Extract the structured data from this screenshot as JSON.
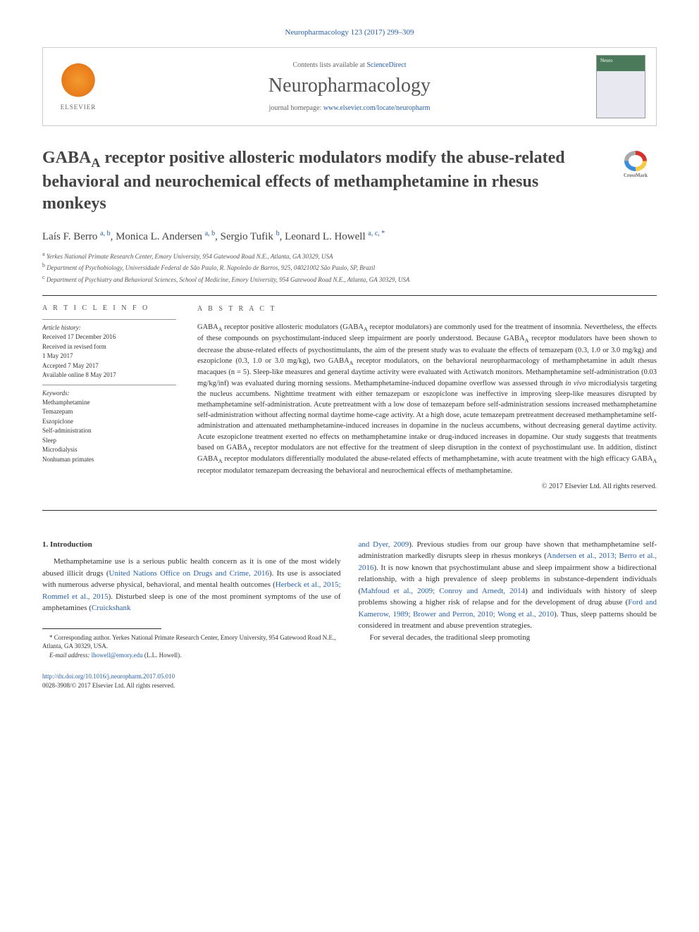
{
  "journal_ref": {
    "text": "Neuropharmacology 123 (2017) 299–309",
    "color": "#2960a8"
  },
  "header": {
    "contents_prefix": "Contents lists available at ",
    "contents_link": "ScienceDirect",
    "journal_name": "Neuropharmacology",
    "homepage_prefix": "journal homepage: ",
    "homepage_link": "www.elsevier.com/locate/neuropharm",
    "publisher_label": "ELSEVIER"
  },
  "crossmark_label": "CrossMark",
  "title": "GABAA receptor positive allosteric modulators modify the abuse-related behavioral and neurochemical effects of methamphetamine in rhesus monkeys",
  "authors": [
    {
      "name": "Laís F. Berro",
      "aff": "a, b"
    },
    {
      "name": "Monica L. Andersen",
      "aff": "a, b"
    },
    {
      "name": "Sergio Tufik",
      "aff": "b"
    },
    {
      "name": "Leonard L. Howell",
      "aff": "a, c, *"
    }
  ],
  "affiliations": [
    {
      "sup": "a",
      "text": "Yerkes National Primate Research Center, Emory University, 954 Gatewood Road N.E., Atlanta, GA 30329, USA"
    },
    {
      "sup": "b",
      "text": "Department of Psychobiology, Universidade Federal de São Paulo, R. Napoleão de Barros, 925, 04021002 São Paulo, SP, Brazil"
    },
    {
      "sup": "c",
      "text": "Department of Psychiatry and Behavioral Sciences, School of Medicine, Emory University, 954 Gatewood Road N.E., Atlanta, GA 30329, USA"
    }
  ],
  "info": {
    "heading": "A R T I C L E  I N F O",
    "history_heading": "Article history:",
    "history": [
      "Received 17 December 2016",
      "Received in revised form",
      "1 May 2017",
      "Accepted 7 May 2017",
      "Available online 8 May 2017"
    ],
    "keywords_heading": "Keywords:",
    "keywords": [
      "Methamphetamine",
      "Temazepam",
      "Eszopiclone",
      "Self-administration",
      "Sleep",
      "Microdialysis",
      "Nonhuman primates"
    ]
  },
  "abstract": {
    "heading": "A B S T R A C T",
    "text": "GABAA receptor positive allosteric modulators (GABAA receptor modulators) are commonly used for the treatment of insomnia. Nevertheless, the effects of these compounds on psychostimulant-induced sleep impairment are poorly understood. Because GABAA receptor modulators have been shown to decrease the abuse-related effects of psychostimulants, the aim of the present study was to evaluate the effects of temazepam (0.3, 1.0 or 3.0 mg/kg) and eszopiclone (0.3, 1.0 or 3.0 mg/kg), two GABAA receptor modulators, on the behavioral neuropharmacology of methamphetamine in adult rhesus macaques (n = 5). Sleep-like measures and general daytime activity were evaluated with Actiwatch monitors. Methamphetamine self-administration (0.03 mg/kg/inf) was evaluated during morning sessions. Methamphetamine-induced dopamine overflow was assessed through in vivo microdialysis targeting the nucleus accumbens. Nighttime treatment with either temazepam or eszopiclone was ineffective in improving sleep-like measures disrupted by methamphetamine self-administration. Acute pretreatment with a low dose of temazepam before self-administration sessions increased methamphetamine self-administration without affecting normal daytime home-cage activity. At a high dose, acute temazepam pretreatment decreased methamphetamine self-administration and attenuated methamphetamine-induced increases in dopamine in the nucleus accumbens, without decreasing general daytime activity. Acute eszopiclone treatment exerted no effects on methamphetamine intake or drug-induced increases in dopamine. Our study suggests that treatments based on GABAA receptor modulators are not effective for the treatment of sleep disruption in the context of psychostimulant use. In addition, distinct GABAA receptor modulators differentially modulated the abuse-related effects of methamphetamine, with acute treatment with the high efficacy GABAA receptor modulator temazepam decreasing the behavioral and neurochemical effects of methamphetamine.",
    "copyright": "© 2017 Elsevier Ltd. All rights reserved."
  },
  "body": {
    "section_heading": "1. Introduction",
    "col1_para": "Methamphetamine use is a serious public health concern as it is one of the most widely abused illicit drugs (",
    "col1_cite1": "United Nations Office on Drugs and Crime, 2016",
    "col1_mid1": "). Its use is associated with numerous adverse physical, behavioral, and mental health outcomes (",
    "col1_cite2": "Herbeck et al., 2015; Rommel et al., 2015",
    "col1_mid2": "). Disturbed sleep is one of the most prominent symptoms of the use of amphetamines (",
    "col1_cite3": "Cruickshank",
    "col2_cite1": "and Dyer, 2009",
    "col2_mid1": "). Previous studies from our group have shown that methamphetamine self-administration markedly disrupts sleep in rhesus monkeys (",
    "col2_cite2": "Andersen et al., 2013; Berro et al., 2016",
    "col2_mid2": "). It is now known that psychostimulant abuse and sleep impairment show a bidirectional relationship, with a high prevalence of sleep problems in substance-dependent individuals (",
    "col2_cite3": "Mahfoud et al., 2009; Conroy and Arnedt, 2014",
    "col2_mid3": ") and individuals with history of sleep problems showing a higher risk of relapse and for the development of drug abuse (",
    "col2_cite4": "Ford and Kamerow, 1989; Brower and Perron, 2010; Wong et al., 2010",
    "col2_mid4": "). Thus, sleep patterns should be considered in treatment and abuse prevention strategies.",
    "col2_para2": "For several decades, the traditional sleep promoting"
  },
  "footnote": {
    "corr": "* Corresponding author. Yerkes National Primate Research Center, Emory University, 954 Gatewood Road N.E., Atlanta, GA 30329, USA.",
    "email_label": "E-mail address: ",
    "email": "lhowell@emory.edu",
    "email_who": " (L.L. Howell)."
  },
  "footer": {
    "doi": "http://dx.doi.org/10.1016/j.neuropharm.2017.05.010",
    "issn_line": "0028-3908/© 2017 Elsevier Ltd. All rights reserved."
  },
  "colors": {
    "link": "#2960a8",
    "text": "#333333",
    "heading": "#555555"
  }
}
